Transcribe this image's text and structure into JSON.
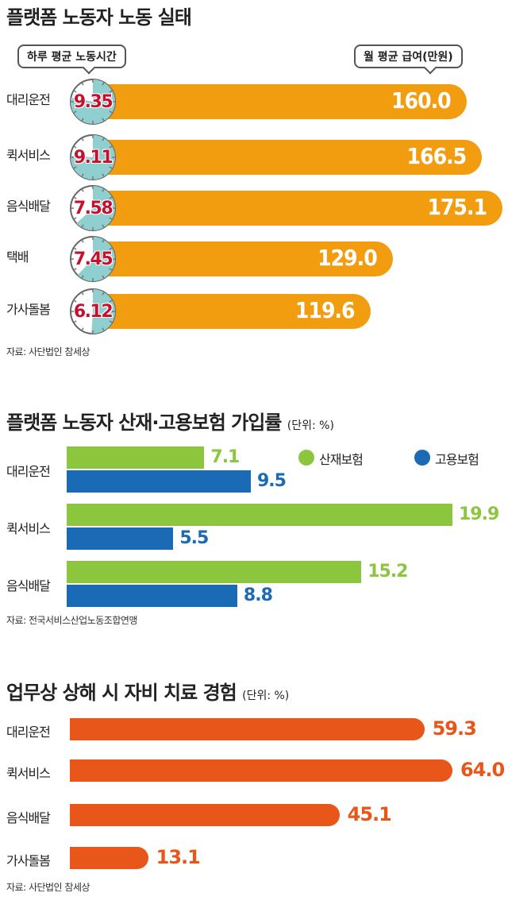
{
  "colors": {
    "pay_bar": "#f29c0f",
    "clock_face": "#8fcfcf",
    "hours_text": "#c8102e",
    "accident_insurance": "#8cc63f",
    "employment_insurance": "#1b6ab5",
    "experience_bar": "#e8561a"
  },
  "chart_data": [
    {
      "type": "bar",
      "title": "플랫폼 노동자 노동 실태",
      "hours_label": "하루 평균 노동시간",
      "pay_label": "월 평균 급여(만원)",
      "categories": [
        "대리운전",
        "퀵서비스",
        "음식배달",
        "택배",
        "가사돌봄"
      ],
      "series": [
        {
          "name": "하루 평균 노동시간",
          "values": [
            9.35,
            9.11,
            7.58,
            7.45,
            6.12
          ],
          "display": [
            "9.35",
            "9.11",
            "7.58",
            "7.45",
            "6.12"
          ]
        },
        {
          "name": "월 평균 급여(만원)",
          "values": [
            160.0,
            166.5,
            175.1,
            129.0,
            119.6
          ],
          "display": [
            "160.0",
            "166.5",
            "175.1",
            "129.0",
            "119.6"
          ]
        }
      ],
      "source": "자료: 사단법인 참세상"
    },
    {
      "type": "bar",
      "title": "플랫폼 노동자 산재·고용보험 가입률",
      "unit": "(단위: %)",
      "categories": [
        "대리운전",
        "퀵서비스",
        "음식배달"
      ],
      "series": [
        {
          "name": "산재보험",
          "values": [
            7.1,
            19.9,
            15.2
          ],
          "display": [
            "7.1",
            "19.9",
            "15.2"
          ]
        },
        {
          "name": "고용보험",
          "values": [
            9.5,
            5.5,
            8.8
          ],
          "display": [
            "9.5",
            "5.5",
            "8.8"
          ]
        }
      ],
      "source": "자료: 전국서비스산업노동조합연맹"
    },
    {
      "type": "bar",
      "title": "업무상 상해 시 자비 치료 경험",
      "unit": "(단위: %)",
      "categories": [
        "대리운전",
        "퀵서비스",
        "음식배달",
        "가사돌봄"
      ],
      "values": [
        59.3,
        64.0,
        45.1,
        13.1
      ],
      "display": [
        "59.3",
        "64.0",
        "45.1",
        "13.1"
      ],
      "source": "자료: 사단법인 참세상"
    }
  ]
}
